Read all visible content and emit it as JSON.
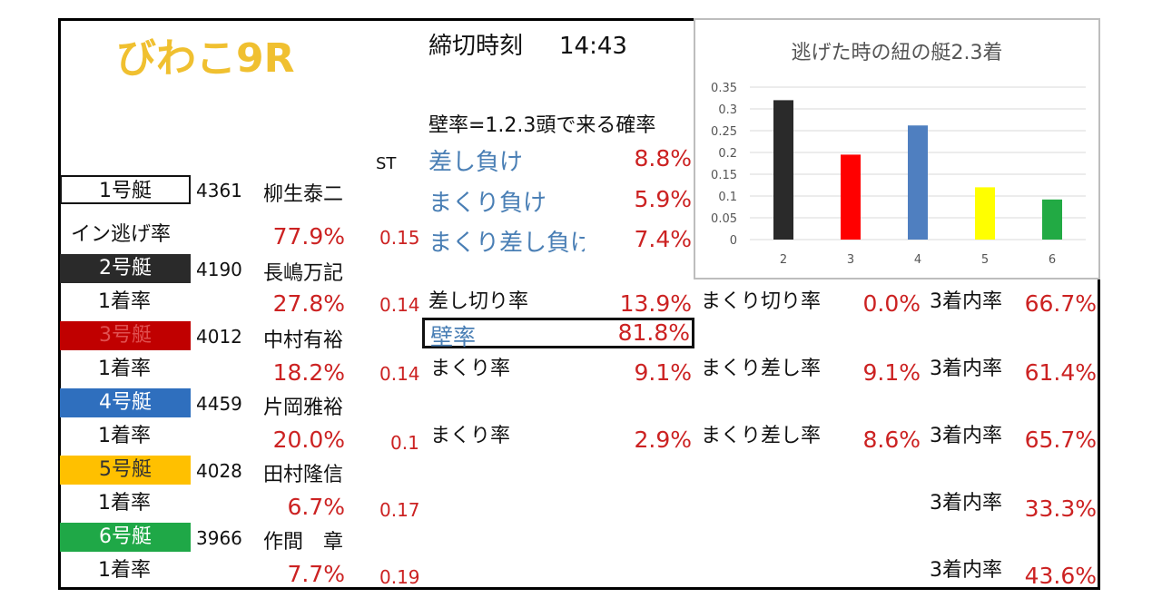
{
  "venue": "びわこ9R",
  "deadline_label": "締切時刻",
  "deadline_time": "14:43",
  "kabe_prob_label": "壁率=1.2.3頭で来る確率",
  "loss_rows": [
    {
      "label": "差し負け",
      "value": "8.8%"
    },
    {
      "label": "まくり負け",
      "value": "5.9%"
    },
    {
      "label": "まくり差し負け",
      "value": "7.4%"
    }
  ],
  "st_header": "ST",
  "boats": [
    {
      "label": "1号艇",
      "reg": "4361",
      "name": "柳生泰二",
      "stat_label": "イン逃げ率",
      "stat": "77.9%",
      "st": "0.15",
      "bg": "#ffffff",
      "fg": "#111111"
    },
    {
      "label": "2号艇",
      "reg": "4190",
      "name": "長嶋万記",
      "stat_label": "1着率",
      "stat": "27.8%",
      "st": "0.14",
      "bg": "#2a2a2a",
      "fg": "#ffffff"
    },
    {
      "label": "3号艇",
      "reg": "4012",
      "name": "中村有裕",
      "stat_label": "1着率",
      "stat": "18.2%",
      "st": "0.14",
      "bg": "#c00000",
      "fg": "#e05050"
    },
    {
      "label": "4号艇",
      "reg": "4459",
      "name": "片岡雅裕",
      "stat_label": "1着率",
      "stat": "20.0%",
      "st": "0.1",
      "bg": "#2f6fbe",
      "fg": "#ffffff"
    },
    {
      "label": "5号艇",
      "reg": "4028",
      "name": "田村隆信",
      "stat_label": "1着率",
      "stat": "6.7%",
      "st": "0.17",
      "bg": "#ffc000",
      "fg": "#333333"
    },
    {
      "label": "6号艇",
      "reg": "3966",
      "name": "作間　章",
      "stat_label": "1着率",
      "stat": "7.7%",
      "st": "0.19",
      "bg": "#1fa847",
      "fg": "#ffffff"
    }
  ],
  "boat2_row": {
    "sashikiri_label": "差し切り率",
    "sashikiri": "13.9%",
    "makurikiri_label": "まくり切り率",
    "makurikiri": "0.0%",
    "top3_label": "3着内率",
    "top3": "66.7%"
  },
  "kabe": {
    "label": "壁率",
    "value": "81.8%"
  },
  "boat3_row": {
    "makuri_label": "まくり率",
    "makuri": "9.1%",
    "makurisashi_label": "まくり差し率",
    "makurisashi": "9.1%",
    "top3_label": "3着内率",
    "top3": "61.4%"
  },
  "boat4_row": {
    "makuri_label": "まくり率",
    "makuri": "2.9%",
    "makurisashi_label": "まくり差し率",
    "makurisashi": "8.6%",
    "top3_label": "3着内率",
    "top3": "65.7%"
  },
  "boat5_row": {
    "top3_label": "3着内率",
    "top3": "33.3%"
  },
  "boat6_row": {
    "top3_label": "3着内率",
    "top3": "43.6%"
  },
  "chart_data": {
    "type": "bar",
    "title": "逃げた時の紐の艇2.3着",
    "categories": [
      "2",
      "3",
      "4",
      "5",
      "6"
    ],
    "values": [
      0.32,
      0.195,
      0.262,
      0.12,
      0.092
    ],
    "colors": [
      "#2a2a2a",
      "#ff0000",
      "#4f7fc0",
      "#ffff00",
      "#22aa44"
    ],
    "ylim": [
      0,
      0.35
    ],
    "yticks": [
      "0",
      "0.05",
      "0.1",
      "0.15",
      "0.2",
      "0.25",
      "0.3",
      "0.35"
    ],
    "grid": true
  }
}
